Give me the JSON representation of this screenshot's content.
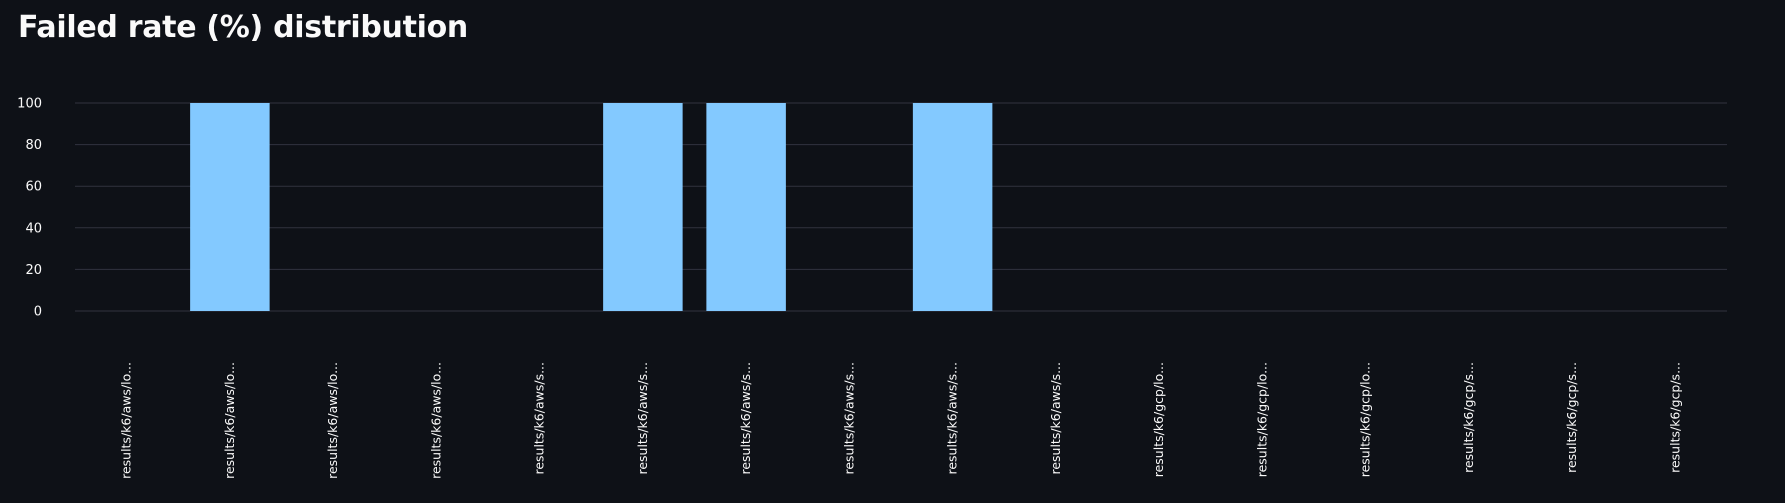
{
  "title": "Failed rate (%) distribution",
  "colors": {
    "background": "#0e1117",
    "bar": "#83c9ff",
    "grid": "#31333f",
    "text": "#fafafa"
  },
  "chart_data": {
    "type": "bar",
    "title": "Failed rate (%) distribution",
    "xlabel": "",
    "ylabel": "",
    "ylim": [
      0,
      100
    ],
    "yticks": [
      0,
      20,
      40,
      60,
      80,
      100
    ],
    "grid": true,
    "categories": [
      "results/k6/aws/lo...",
      "results/k6/aws/lo...",
      "results/k6/aws/lo...",
      "results/k6/aws/lo...",
      "results/k6/aws/s...",
      "results/k6/aws/s...",
      "results/k6/aws/s...",
      "results/k6/aws/s...",
      "results/k6/aws/s...",
      "results/k6/aws/s...",
      "results/k6/gcp/lo...",
      "results/k6/gcp/lo...",
      "results/k6/gcp/lo...",
      "results/k6/gcp/s...",
      "results/k6/gcp/s...",
      "results/k6/gcp/s..."
    ],
    "values": [
      0,
      100,
      0,
      0,
      0,
      100,
      100,
      0,
      100,
      0,
      0,
      0,
      0,
      0,
      0,
      0
    ]
  }
}
